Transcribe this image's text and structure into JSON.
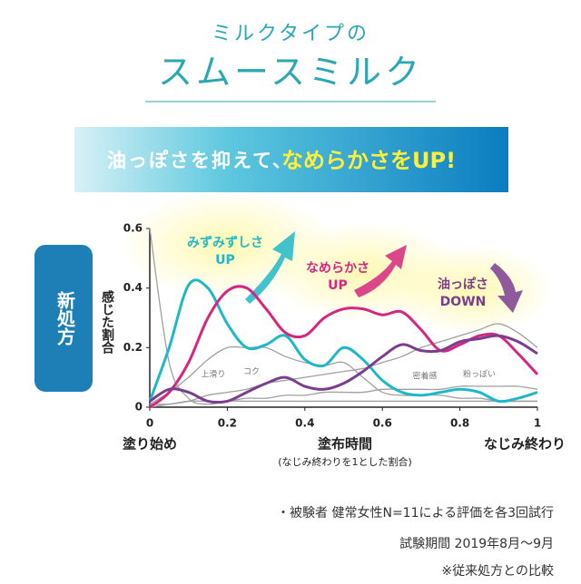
{
  "chart_data": {
    "type": "line",
    "kicker": "ミルクタイプの",
    "title": "スムースミルク",
    "banner": {
      "text": "油っぽさを抑えて、",
      "highlight": "なめらかさをUP!"
    },
    "badge": "新処方",
    "y_label": "感じた割合",
    "x_label": "塗布時間",
    "x_sublabel": "(なじみ終わりを1とした割合)",
    "x_start_label": "塗り始め",
    "x_end_label": "なじみ終わり",
    "x": [
      0,
      0.05,
      0.1,
      0.15,
      0.2,
      0.25,
      0.3,
      0.35,
      0.4,
      0.45,
      0.5,
      0.55,
      0.6,
      0.65,
      0.7,
      0.75,
      0.8,
      0.85,
      0.9,
      0.95,
      1
    ],
    "xlim": [
      0,
      1
    ],
    "xticks": [
      0,
      0.2,
      0.4,
      0.6,
      0.8,
      1
    ],
    "ylim": [
      0,
      0.6
    ],
    "yticks": [
      0,
      0.2,
      0.4,
      0.6
    ],
    "series": [
      {
        "name": "上滑り",
        "color": "#a0a0a0",
        "values": [
          0.6,
          0.15,
          0.03,
          0.01,
          0.02,
          0.02,
          0.02,
          0.02,
          0.02,
          0.02,
          0.02,
          0.02,
          0.02,
          0.02,
          0.02,
          0.02,
          0.02,
          0.02,
          0.02,
          0.02,
          0.02
        ]
      },
      {
        "name": "コク",
        "color": "#a0a0a0",
        "values": [
          0.01,
          0.05,
          0.1,
          0.16,
          0.2,
          0.2,
          0.2,
          0.17,
          0.15,
          0.14,
          0.15,
          0.1,
          0.05,
          0.04,
          0.04,
          0.04,
          0.03,
          0.03,
          0.02,
          0.02,
          0.02
        ]
      },
      {
        "name": "密着感",
        "color": "#a0a0a0",
        "values": [
          0,
          0.01,
          0.02,
          0.04,
          0.05,
          0.06,
          0.08,
          0.09,
          0.1,
          0.11,
          0.12,
          0.13,
          0.15,
          0.17,
          0.2,
          0.22,
          0.24,
          0.26,
          0.28,
          0.25,
          0.2
        ]
      },
      {
        "name": "粉っぽい",
        "color": "#a0a0a0",
        "values": [
          0.01,
          0.01,
          0.02,
          0.02,
          0.02,
          0.03,
          0.03,
          0.04,
          0.04,
          0.05,
          0.05,
          0.05,
          0.06,
          0.06,
          0.06,
          0.06,
          0.07,
          0.07,
          0.07,
          0.07,
          0.06
        ]
      },
      {
        "name": "みずみずしさ",
        "trend": "UP",
        "color": "#1fb8c8",
        "values": [
          0.02,
          0.2,
          0.41,
          0.4,
          0.28,
          0.2,
          0.21,
          0.24,
          0.16,
          0.14,
          0.2,
          0.16,
          0.09,
          0.05,
          0.04,
          0.05,
          0.06,
          0.05,
          0.02,
          0.03,
          0.05
        ]
      },
      {
        "name": "なめらかさ",
        "trend": "UP",
        "color": "#d6267f",
        "values": [
          0,
          0.05,
          0.15,
          0.3,
          0.39,
          0.4,
          0.33,
          0.25,
          0.24,
          0.3,
          0.33,
          0.33,
          0.31,
          0.32,
          0.26,
          0.19,
          0.21,
          0.24,
          0.24,
          0.18,
          0.11
        ]
      },
      {
        "name": "油っぽさ",
        "trend": "DOWN",
        "color": "#7a3d8f",
        "values": [
          0.02,
          0.06,
          0.05,
          0.02,
          0.02,
          0.05,
          0.08,
          0.1,
          0.07,
          0.06,
          0.08,
          0.12,
          0.17,
          0.21,
          0.19,
          0.19,
          0.22,
          0.23,
          0.24,
          0.22,
          0.18
        ]
      }
    ],
    "notes": [
      "・被験者 健常女性N=11による評価を各3回試行",
      "試験期間 2019年8月〜9月",
      "※従来処方との比較"
    ]
  }
}
